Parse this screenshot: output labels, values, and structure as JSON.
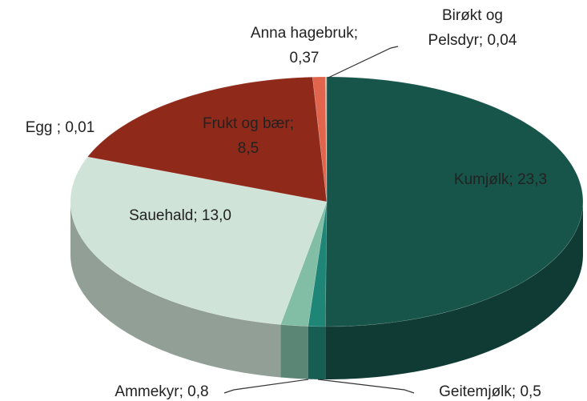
{
  "chart_data": {
    "type": "pie3d",
    "categories": [
      "Kumjølk",
      "Geitemjølk",
      "Ammekyr",
      "Sauehald",
      "Egg",
      "Frukt og bær",
      "Anna hagebruk",
      "Birøkt og Pelsdyr"
    ],
    "values": [
      23.3,
      0.5,
      0.8,
      13.0,
      0.01,
      8.5,
      0.37,
      0.04
    ],
    "labels": [
      [
        "Kumjølk; 23,3"
      ],
      [
        "Geitemjølk; 0,5"
      ],
      [
        "Ammekyr; 0,8"
      ],
      [
        "Sauehald; 13,0"
      ],
      [
        "Egg ; 0,01"
      ],
      [
        "Frukt og bær;",
        "8,5"
      ],
      [
        "Anna hagebruk;",
        "0,37"
      ],
      [
        "Birøkt og",
        "Pelsdyr; 0,04"
      ]
    ],
    "colors": [
      "#17544a",
      "#1f8677",
      "#82bea6",
      "#cfe3d8",
      "#dfe8e4",
      "#8f2a1a",
      "#e0654c",
      "#f2a88e"
    ]
  }
}
